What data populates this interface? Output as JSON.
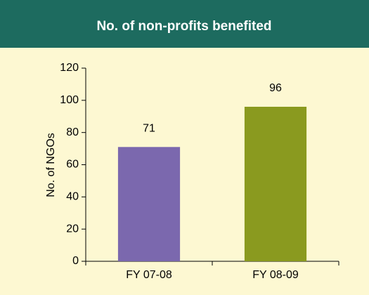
{
  "chart_data": {
    "type": "bar",
    "title": "No. of non-profits benefited",
    "y_label": "No. of NGOs",
    "categories": [
      "FY 07-08",
      "FY 08-09"
    ],
    "values": [
      71,
      96
    ],
    "colors": [
      "#7b68ae",
      "#8a9a1f"
    ],
    "ylim": [
      0,
      120
    ],
    "yticks": [
      0,
      20,
      40,
      60,
      80,
      100,
      120
    ],
    "grid": false
  }
}
